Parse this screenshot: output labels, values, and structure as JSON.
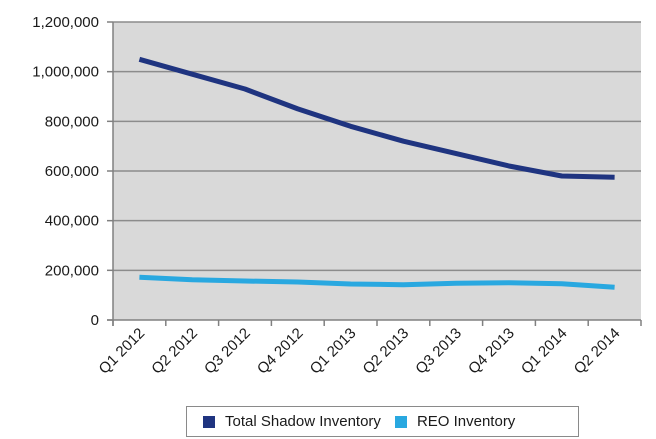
{
  "chart_data": {
    "type": "line",
    "title": "",
    "xlabel": "",
    "ylabel": "",
    "categories": [
      "Q1 2012",
      "Q2 2012",
      "Q3 2012",
      "Q4 2012",
      "Q1 2013",
      "Q2 2013",
      "Q3 2013",
      "Q4 2013",
      "Q1 2014",
      "Q2 2014"
    ],
    "ylim": [
      0,
      1200000
    ],
    "yticks": [
      0,
      200000,
      400000,
      600000,
      800000,
      1000000,
      1200000
    ],
    "ytick_labels": [
      "0",
      "200,000",
      "400,000",
      "600,000",
      "800,000",
      "1,000,000",
      "1,200,000"
    ],
    "grid": "horizontal",
    "legend_position": "bottom",
    "plot_background": "#d9d9d9",
    "series": [
      {
        "name": "Total Shadow Inventory",
        "color": "#1f3480",
        "values": [
          1050000,
          990000,
          930000,
          850000,
          780000,
          720000,
          670000,
          620000,
          580000,
          575000
        ]
      },
      {
        "name": "REO Inventory",
        "color": "#29a8e0",
        "values": [
          172000,
          162000,
          157000,
          153000,
          145000,
          142000,
          148000,
          150000,
          146000,
          132000
        ]
      }
    ]
  }
}
